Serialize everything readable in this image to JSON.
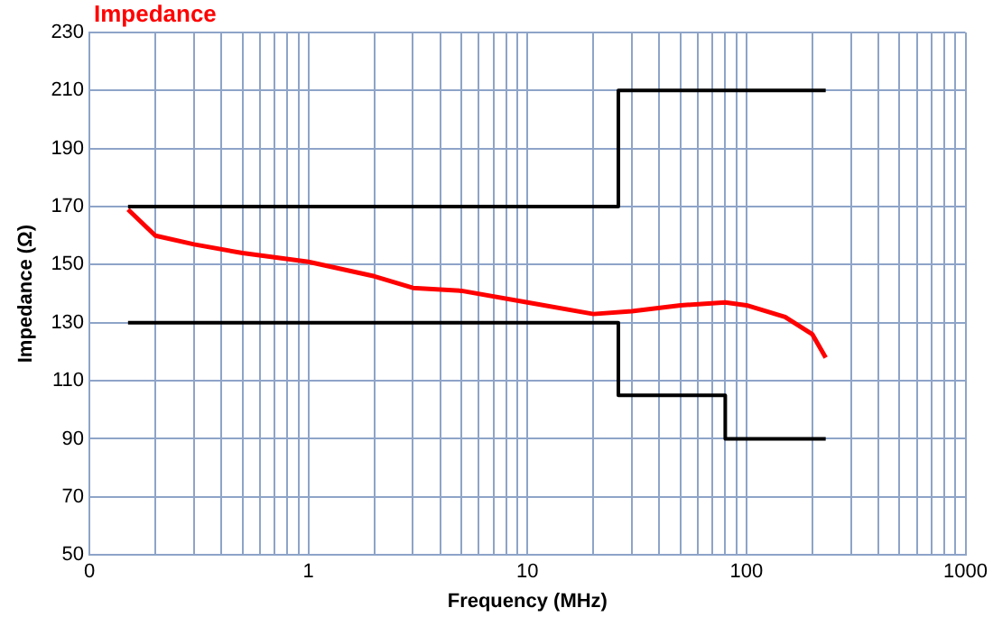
{
  "chart_data": {
    "type": "line",
    "title": "Impedance",
    "xlabel": "Frequency (MHz)",
    "ylabel": "Impedance (Ω)",
    "log": "x",
    "grid": true,
    "legend": false,
    "marker": "none",
    "line_style": "solid",
    "xlim": [
      0.1,
      1000
    ],
    "ylim": [
      50,
      230
    ],
    "xticks": [
      {
        "value": 0.1,
        "label": "0"
      },
      {
        "value": 0.2,
        "label": null
      },
      {
        "value": 0.3,
        "label": null
      },
      {
        "value": 0.4,
        "label": null
      },
      {
        "value": 0.5,
        "label": null
      },
      {
        "value": 0.6,
        "label": null
      },
      {
        "value": 0.7,
        "label": null
      },
      {
        "value": 0.8,
        "label": null
      },
      {
        "value": 0.9,
        "label": null
      },
      1,
      {
        "value": 2,
        "label": null
      },
      {
        "value": 3,
        "label": null
      },
      {
        "value": 4,
        "label": null
      },
      {
        "value": 5,
        "label": null
      },
      {
        "value": 6,
        "label": null
      },
      {
        "value": 7,
        "label": null
      },
      {
        "value": 8,
        "label": null
      },
      {
        "value": 9,
        "label": null
      },
      10,
      {
        "value": 20,
        "label": null
      },
      {
        "value": 30,
        "label": null
      },
      {
        "value": 40,
        "label": null
      },
      {
        "value": 50,
        "label": null
      },
      {
        "value": 60,
        "label": null
      },
      {
        "value": 70,
        "label": null
      },
      {
        "value": 80,
        "label": null
      },
      {
        "value": 90,
        "label": null
      },
      100,
      {
        "value": 200,
        "label": null
      },
      {
        "value": 300,
        "label": null
      },
      {
        "value": 400,
        "label": null
      },
      {
        "value": 500,
        "label": null
      },
      {
        "value": 600,
        "label": null
      },
      {
        "value": 700,
        "label": null
      },
      {
        "value": 800,
        "label": null
      },
      {
        "value": 900,
        "label": null
      },
      1000
    ],
    "yticks": [
      50,
      70,
      90,
      110,
      130,
      150,
      170,
      190,
      210,
      230
    ],
    "series": [
      {
        "color": "#000000",
        "x": [
          0.15,
          26,
          26,
          230
        ],
        "values": [
          170,
          170,
          210,
          210
        ]
      },
      {
        "color": "#000000",
        "x": [
          0.15,
          26,
          26,
          80,
          80,
          230
        ],
        "values": [
          130,
          130,
          105,
          105,
          90,
          90
        ]
      },
      {
        "color": "#ff0000",
        "x": [
          0.15,
          0.2,
          0.3,
          0.5,
          1,
          2,
          3,
          5,
          10,
          20,
          30,
          50,
          80,
          100,
          150,
          200,
          230
        ],
        "values": [
          169,
          160,
          157,
          154,
          151,
          146,
          142,
          141,
          137,
          133,
          134,
          136,
          137,
          136,
          132,
          126,
          118
        ]
      }
    ]
  }
}
